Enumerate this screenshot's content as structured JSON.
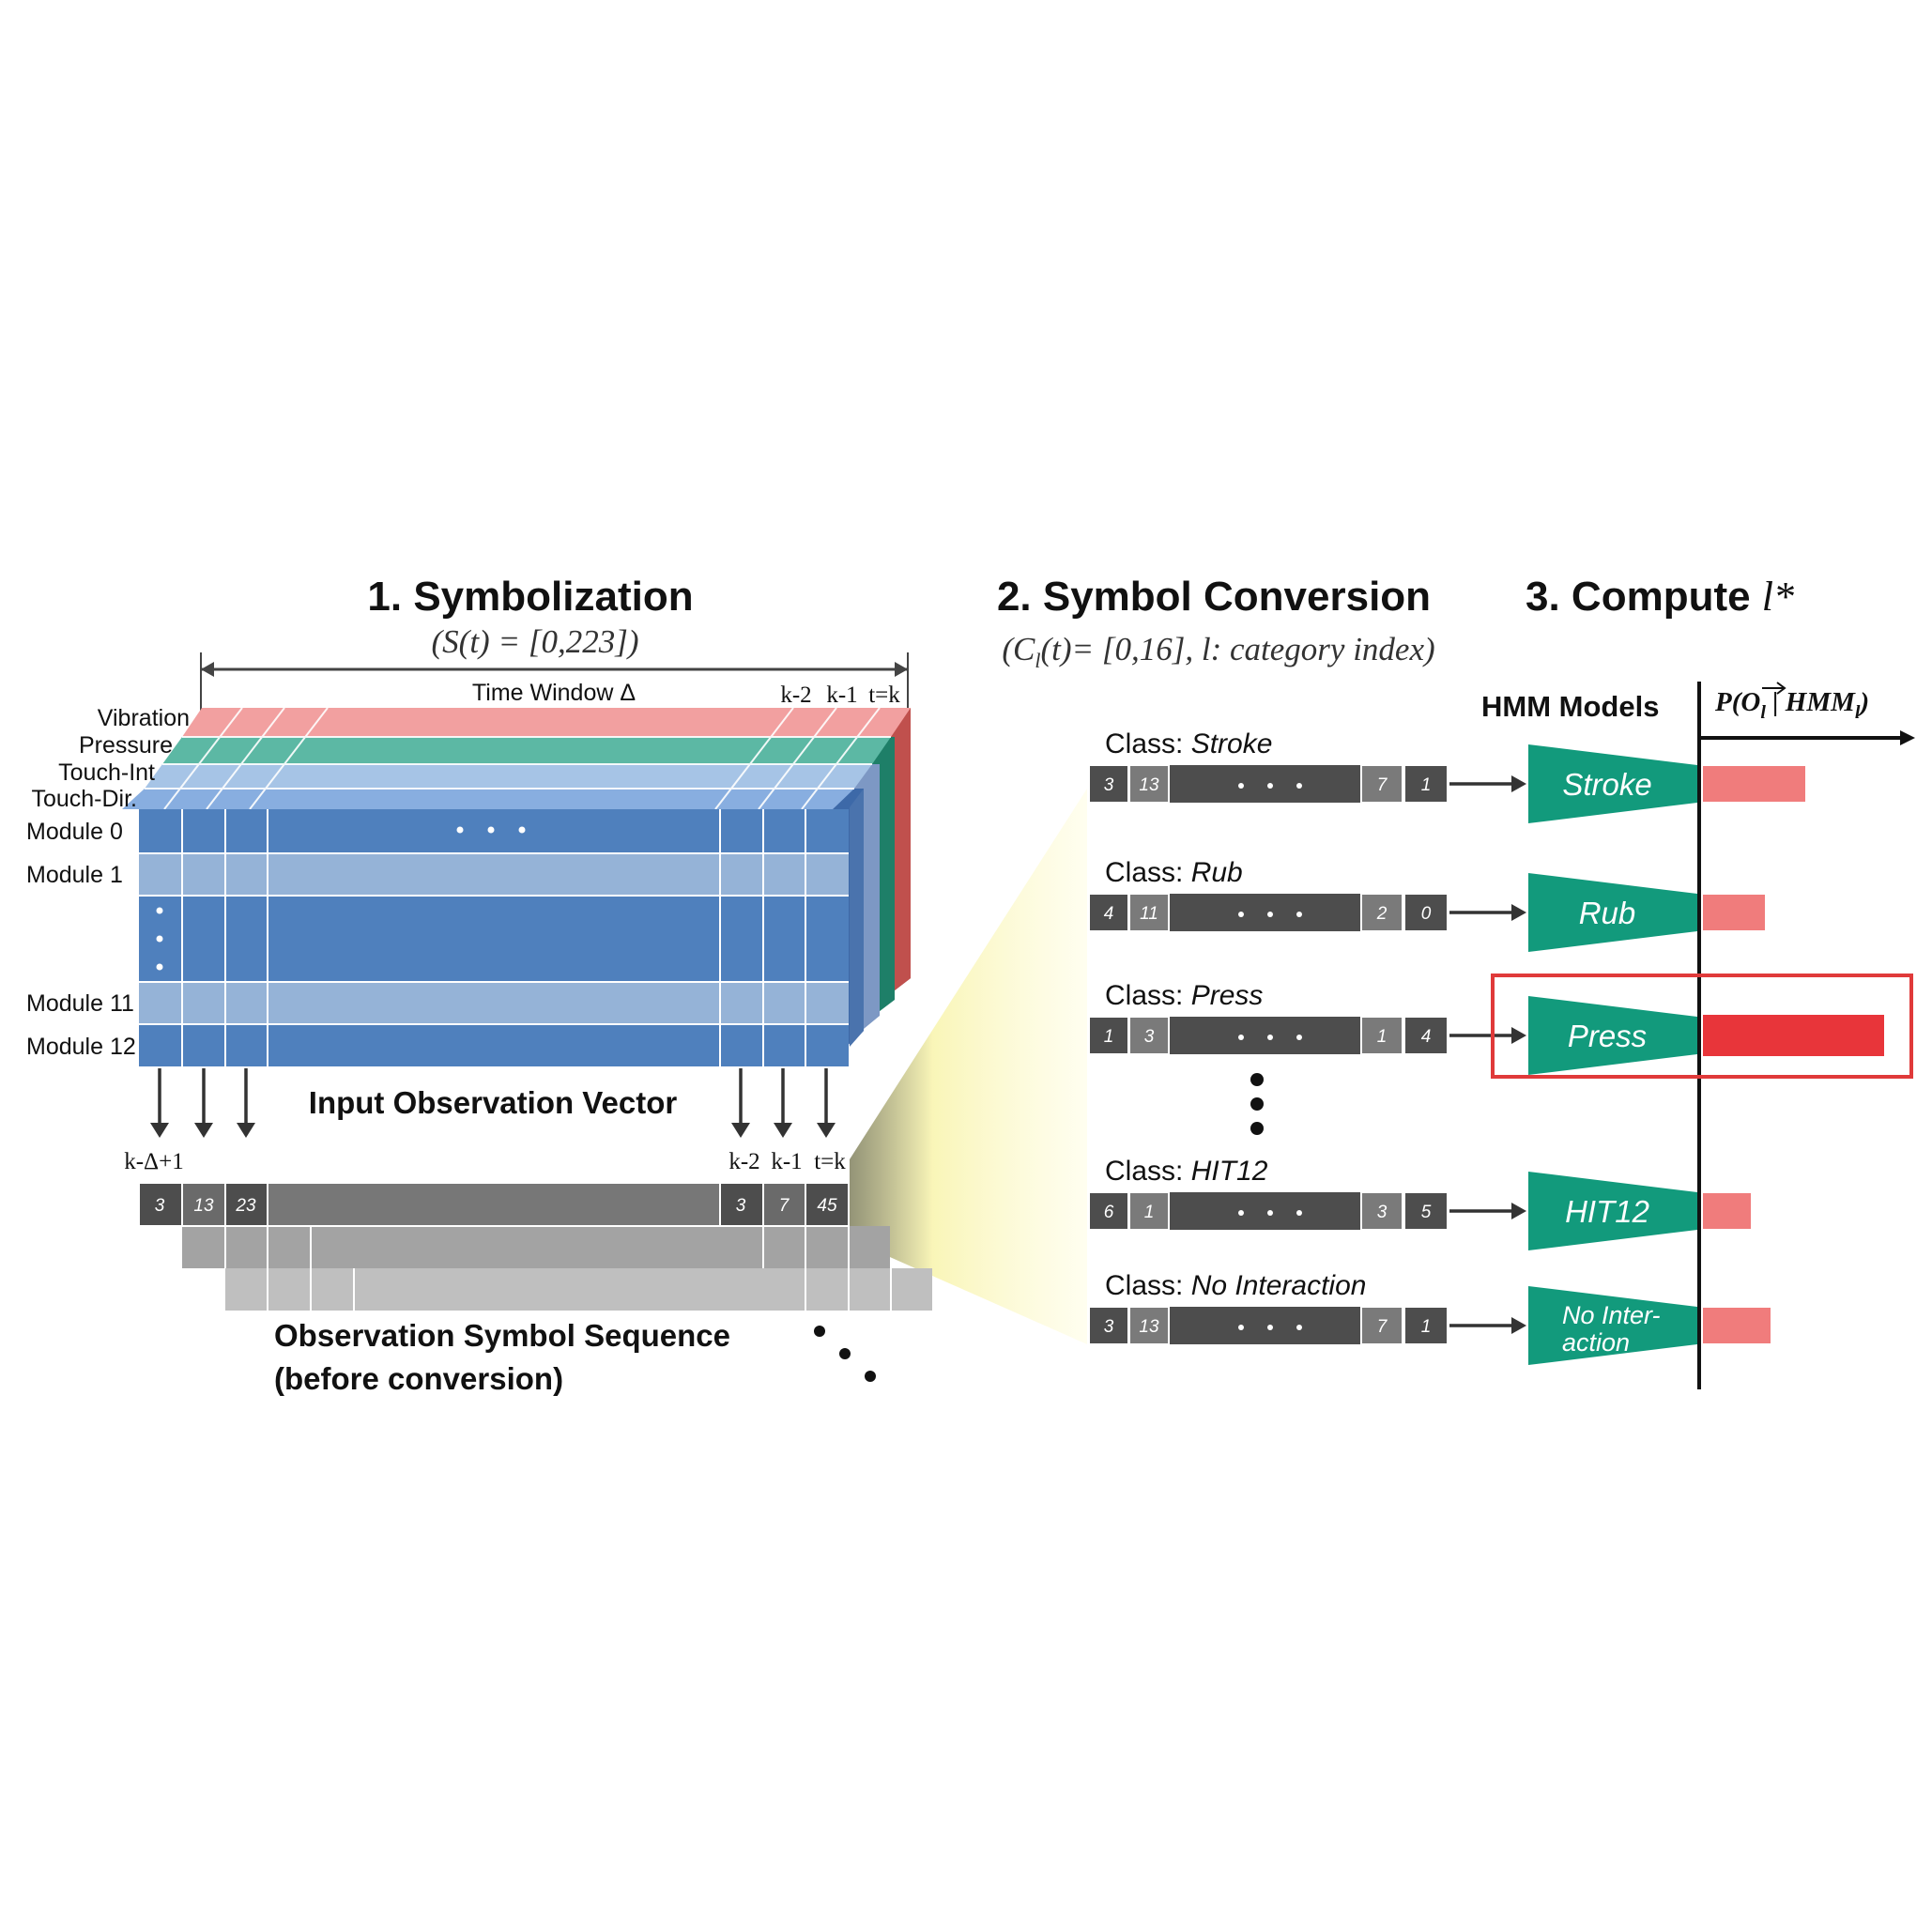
{
  "sections": {
    "s1_title": "1. Symbolization",
    "s1_formula": "(S(t) = [0,223])",
    "s2_title": "2. Symbol Conversion",
    "s2_formula_a": "(C",
    "s2_formula_sub": "l",
    "s2_formula_b": "(t)= [0,16], l: category index)",
    "s3_title": "3. Compute ",
    "s3_title_var": "l*"
  },
  "time_window": "Time Window Δ",
  "top_k_labels": [
    "k-2",
    "k-1",
    "t=k"
  ],
  "layer_labels": [
    "Vibration",
    "Pressure",
    "Touch-Int",
    "Touch-Dir."
  ],
  "module_labels": [
    "Module 0",
    "Module 1",
    "Module 11",
    "Module 12"
  ],
  "input_vector_label": "Input Observation Vector",
  "bottom_k_labels": {
    "first": "k-Δ+1",
    "last": [
      "k-2",
      "k-1",
      "t=k"
    ]
  },
  "sequence_cells": {
    "first": [
      "3",
      "13",
      "23"
    ],
    "last": [
      "3",
      "7",
      "45"
    ]
  },
  "sequence_label_line1": "Observation Symbol Sequence",
  "sequence_label_line2": "(before conversion)",
  "hmm_header": "HMM Models",
  "prob_header": {
    "p": "P(",
    "o": "O",
    "sub": "l",
    "mid": " | HMM",
    "sub2": "l",
    "close": ")"
  },
  "class_prefix": "Class: ",
  "classes": [
    {
      "name": "Stroke",
      "cells": [
        "3",
        "13",
        "7",
        "1"
      ],
      "model": "Stroke",
      "prob": 0.53,
      "highlight": false
    },
    {
      "name": "Rub",
      "cells": [
        "4",
        "11",
        "2",
        "0"
      ],
      "model": "Rub",
      "prob": 0.32,
      "highlight": false
    },
    {
      "name": "Press",
      "cells": [
        "1",
        "3",
        "1",
        "4"
      ],
      "model": "Press",
      "prob": 0.94,
      "highlight": true
    },
    {
      "name": "HIT12",
      "cells": [
        "6",
        "1",
        "3",
        "5"
      ],
      "model": "HIT12",
      "prob": 0.25,
      "highlight": false
    },
    {
      "name": "No Interaction",
      "cells": [
        "3",
        "13",
        "7",
        "1"
      ],
      "model_line1": "No Inter-",
      "model_line2": "action",
      "prob": 0.35,
      "highlight": false
    }
  ],
  "colors": {
    "module_dark": "#4f80bd",
    "module_light": "#95b3d7",
    "vibration": "#f2a0a0",
    "pressure": "#5cb8a4",
    "touch_int": "#a6c4e6",
    "touch_dir": "#88aee0",
    "side_red": "#c0504d",
    "side_green": "#1e7f68",
    "side_blue": "#3d69a8",
    "seq_dark": "#4d4d4d",
    "seq_cell": "#777777",
    "seq_mid": "#a3a3a3",
    "seq_light": "#bfbfbf",
    "hmm_teal": "#129a7c",
    "bar_light": "#f07c7c",
    "bar_strong": "#e8353a",
    "highlight_box": "#e03a3a",
    "glow": "#fbf7a6"
  }
}
